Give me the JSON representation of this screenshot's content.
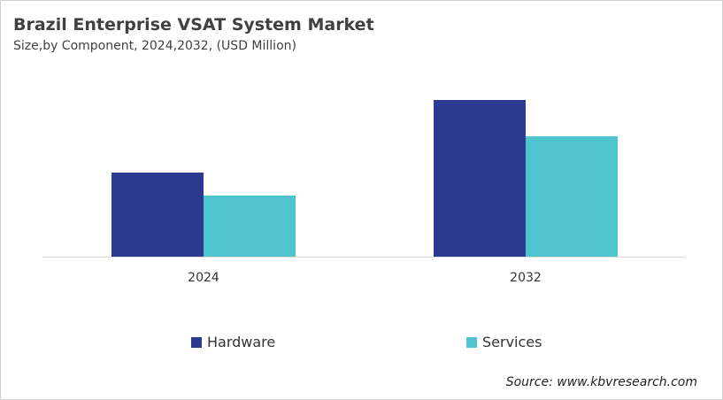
{
  "chart_data": {
    "type": "bar",
    "title": "Brazil Enterprise VSAT System Market",
    "subtitle": "Size,by Component, 2024,2032, (USD Million)",
    "categories": [
      "2024",
      "2032"
    ],
    "series": [
      {
        "name": "Hardware",
        "values": [
          95,
          177
        ],
        "color": "#2b3990"
      },
      {
        "name": "Services",
        "values": [
          69,
          136
        ],
        "color": "#4fc4cf"
      }
    ],
    "ylim": [
      0,
      200
    ],
    "grid": false,
    "legend": "bottom",
    "source": "Source: www.kbvresearch.com"
  }
}
